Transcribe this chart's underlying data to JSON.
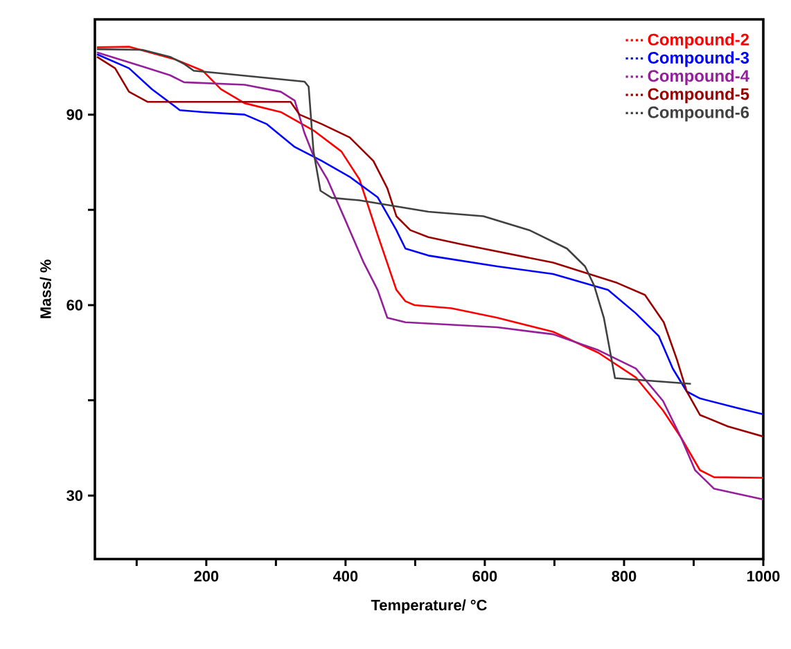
{
  "chart_data": {
    "type": "line",
    "xlabel": "Temperature/ °C",
    "ylabel": "Mass/ %",
    "xlim": [
      40,
      1000
    ],
    "ylim": [
      20,
      105
    ],
    "xticks": [
      {
        "value": 100,
        "label": null
      },
      200,
      {
        "value": 300,
        "label": null
      },
      400,
      {
        "value": 500,
        "label": null
      },
      600,
      {
        "value": 700,
        "label": null
      },
      800,
      {
        "value": 900,
        "label": null
      },
      1000
    ],
    "yticks": [
      30,
      {
        "value": 45,
        "label": null
      },
      60,
      {
        "value": 75,
        "label": null
      },
      90
    ],
    "legend": "top right",
    "grid": false,
    "line_style": "solid",
    "marker": "none",
    "series": [
      {
        "name": "Compound-2",
        "color": "#ff0000",
        "x": [
          43,
          89,
          155,
          195,
          221,
          255,
          307,
          354,
          394,
          420,
          446,
          473,
          486,
          499,
          552,
          618,
          698,
          763,
          817,
          856,
          882,
          909,
          929,
          995,
          1000
        ],
        "values": [
          100.6,
          100.7,
          98.7,
          96.9,
          94,
          91.8,
          90.4,
          87.5,
          84.2,
          79.8,
          71.1,
          62.4,
          60.6,
          60,
          59.5,
          58,
          55.8,
          52.5,
          48.6,
          43.4,
          39.1,
          34,
          32.9,
          32.8,
          32.8
        ]
      },
      {
        "name": "Compound-3",
        "color": "#0000ff",
        "x": [
          43,
          89,
          122,
          162,
          195,
          255,
          287,
          327,
          366,
          406,
          446,
          473,
          486,
          519,
          618,
          698,
          777,
          817,
          850,
          870,
          890,
          909,
          962,
          1000
        ],
        "values": [
          99.5,
          97.3,
          94,
          90.7,
          90.4,
          90,
          88.5,
          84.9,
          82.7,
          80.2,
          77,
          71.8,
          68.9,
          67.8,
          66.1,
          64.9,
          62.4,
          58.7,
          55.1,
          50,
          46.4,
          45.3,
          43.8,
          42.8
        ]
      },
      {
        "name": "Compound-4",
        "color": "#951e9a",
        "x": [
          43,
          108,
          148,
          168,
          255,
          307,
          327,
          341,
          354,
          374,
          400,
          426,
          446,
          460,
          486,
          618,
          698,
          763,
          817,
          856,
          882,
          902,
          929,
          995,
          1000
        ],
        "values": [
          99.8,
          97.6,
          96.2,
          95.1,
          94.7,
          93.6,
          92.2,
          87.1,
          83.5,
          79.8,
          73.3,
          66.7,
          62.4,
          58,
          57.3,
          56.5,
          55.4,
          52.9,
          50,
          44.9,
          39.1,
          34,
          31.1,
          29.5,
          29.4
        ]
      },
      {
        "name": "Compound-5",
        "color": "#990000",
        "x": [
          43,
          69,
          89,
          116,
          221,
          321,
          334,
          366,
          406,
          440,
          460,
          473,
          493,
          519,
          565,
          698,
          790,
          830,
          857,
          876,
          890,
          909,
          949,
          1000
        ],
        "values": [
          99.1,
          97.3,
          93.6,
          92,
          92,
          92,
          90,
          88.5,
          86.4,
          82.7,
          78.4,
          74,
          71.8,
          70.7,
          69.6,
          66.7,
          63.5,
          61.6,
          57.3,
          51.4,
          46.4,
          42.7,
          40.9,
          39.3
        ]
      },
      {
        "name": "Compound-6",
        "color": "#404040",
        "x": [
          43,
          108,
          148,
          168,
          182,
          221,
          341,
          347,
          354,
          364,
          380,
          420,
          519,
          598,
          664,
          718,
          744,
          757,
          771,
          787,
          896
        ],
        "values": [
          100.3,
          100.2,
          99.1,
          98,
          96.9,
          96.5,
          95.2,
          94.4,
          84.2,
          78,
          76.9,
          76.5,
          74.7,
          74,
          71.8,
          68.9,
          66.1,
          63.1,
          58,
          48.5,
          47.6
        ]
      }
    ]
  }
}
